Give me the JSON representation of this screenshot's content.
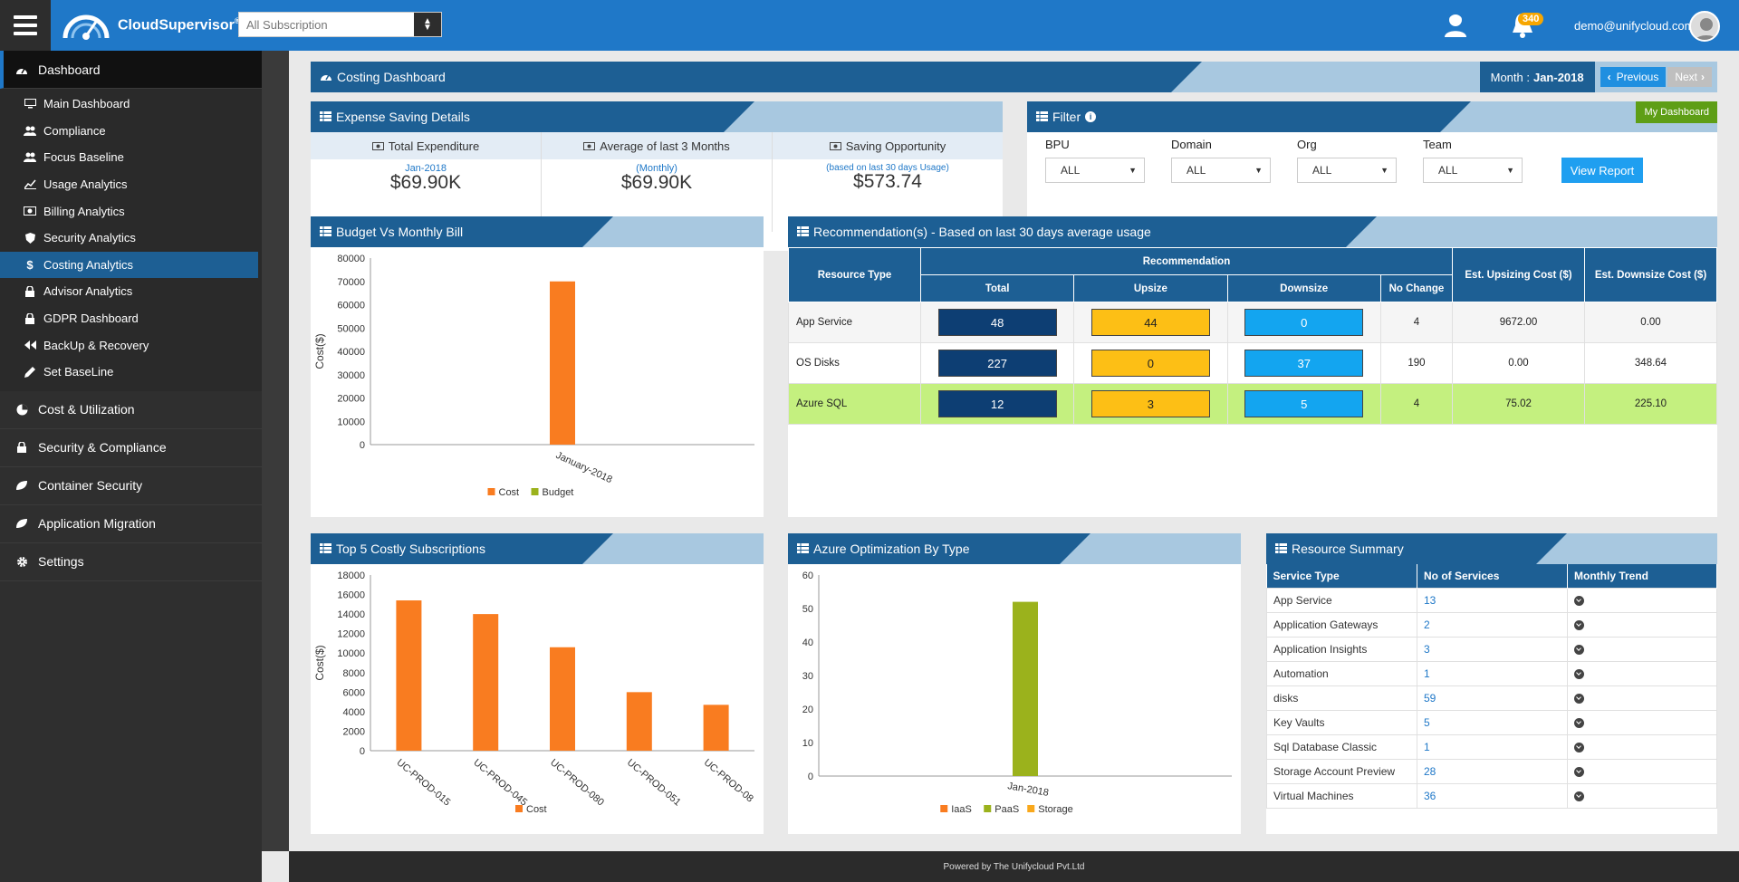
{
  "topbar": {
    "brand": "CloudSupervisor",
    "brand_mark": "®",
    "subscription": "All Subscription",
    "notifications": "340",
    "user_email": "demo@unifycloud.com"
  },
  "sidebar": {
    "dashboard": "Dashboard",
    "sub_items": [
      {
        "label": "Main Dashboard",
        "icon": "monitor-icon"
      },
      {
        "label": "Compliance",
        "icon": "users-icon"
      },
      {
        "label": "Focus Baseline",
        "icon": "users-icon"
      },
      {
        "label": "Usage Analytics",
        "icon": "line-chart-icon"
      },
      {
        "label": "Billing Analytics",
        "icon": "money-icon"
      },
      {
        "label": "Security Analytics",
        "icon": "shield-icon"
      },
      {
        "label": "Costing Analytics",
        "icon": "dollar-icon"
      },
      {
        "label": "Advisor Analytics",
        "icon": "lock-icon"
      },
      {
        "label": "GDPR Dashboard",
        "icon": "lock-icon"
      },
      {
        "label": "BackUp & Recovery",
        "icon": "backward-icon"
      },
      {
        "label": "Set BaseLine",
        "icon": "pencil-icon"
      }
    ],
    "main_items": [
      {
        "label": "Cost & Utilization",
        "icon": "pie-icon"
      },
      {
        "label": "Security & Compliance",
        "icon": "lock-icon"
      },
      {
        "label": "Container Security",
        "icon": "leaf-icon"
      },
      {
        "label": "Application Migration",
        "icon": "leaf-icon"
      },
      {
        "label": "Settings",
        "icon": "gear-icon"
      }
    ]
  },
  "costing": {
    "title": "Costing Dashboard",
    "month_prefix": "Month :",
    "month": "Jan-2018",
    "previous": "Previous",
    "next": "Next"
  },
  "expense": {
    "title": "Expense Saving Details",
    "total_title": "Total Expenditure",
    "total_sub": "Jan-2018",
    "total_value": "$69.90K",
    "avg_title": "Average of last 3 Months",
    "avg_sub": "(Monthly)",
    "avg_value": "$69.90K",
    "saving_title": "Saving Opportunity",
    "saving_sub": "(based on last 30 days Usage)",
    "saving_value": "$573.74"
  },
  "filter": {
    "title": "Filter",
    "my_dashboard": "My Dashboard",
    "fields": [
      {
        "label": "BPU",
        "value": "ALL"
      },
      {
        "label": "Domain",
        "value": "ALL"
      },
      {
        "label": "Org",
        "value": "ALL"
      },
      {
        "label": "Team",
        "value": "ALL"
      }
    ],
    "view_report": "View Report"
  },
  "budget_chart_panel": {
    "title": "Budget Vs Monthly Bill"
  },
  "recommendation": {
    "title": "Recommendation(s) - Based on last 30 days average usage",
    "headers": {
      "resource_type": "Resource Type",
      "recommendation": "Recommendation",
      "total": "Total",
      "upsize": "Upsize",
      "downsize": "Downsize",
      "no_change": "No Change",
      "upsizing_cost": "Est. Upsizing Cost ($)",
      "downsize_cost": "Est. Downsize Cost ($)"
    },
    "rows": [
      {
        "type": "App Service",
        "total": "48",
        "upsize": "44",
        "downsize": "0",
        "no_change": "4",
        "up_cost": "9672.00",
        "down_cost": "0.00"
      },
      {
        "type": "OS Disks",
        "total": "227",
        "upsize": "0",
        "downsize": "37",
        "no_change": "190",
        "up_cost": "0.00",
        "down_cost": "348.64"
      },
      {
        "type": "Azure SQL",
        "total": "12",
        "upsize": "3",
        "downsize": "5",
        "no_change": "4",
        "up_cost": "75.02",
        "down_cost": "225.10"
      }
    ]
  },
  "top5_panel": {
    "title": "Top 5 Costly Subscriptions"
  },
  "azure_panel": {
    "title": "Azure Optimization By Type"
  },
  "resource_summary": {
    "title": "Resource Summary",
    "headers": {
      "service_type": "Service Type",
      "no_of_services": "No of Services",
      "monthly_trend": "Monthly Trend"
    },
    "rows": [
      {
        "service": "App Service",
        "count": "13"
      },
      {
        "service": "Application Gateways",
        "count": "2"
      },
      {
        "service": "Application Insights",
        "count": "3"
      },
      {
        "service": "Automation",
        "count": "1"
      },
      {
        "service": "disks",
        "count": "59"
      },
      {
        "service": "Key Vaults",
        "count": "5"
      },
      {
        "service": "Sql Database Classic",
        "count": "1"
      },
      {
        "service": "Storage Account Preview",
        "count": "28"
      },
      {
        "service": "Virtual Machines",
        "count": "36"
      }
    ]
  },
  "footer": {
    "text": "Powered by The Unifycloud Pvt.Ltd"
  },
  "colors": {
    "cost": "#f97c20",
    "budget": "#9bb21c",
    "iaas": "#f97c20",
    "paas": "#9bb21c",
    "storage": "#f9a81c"
  },
  "chart_data": [
    {
      "type": "bar",
      "categories": [
        "January-2018"
      ],
      "series": [
        {
          "name": "Cost",
          "values": [
            70000
          ]
        },
        {
          "name": "Budget",
          "values": [
            0
          ]
        }
      ],
      "ylabel": "Cost($)",
      "ylim": [
        0,
        80000
      ],
      "yticks": [
        0,
        10000,
        20000,
        30000,
        40000,
        50000,
        60000,
        70000,
        80000
      ],
      "legend": "bottom"
    },
    {
      "type": "bar",
      "categories": [
        "UC-PROD-015",
        "UC-PROD-045",
        "UC-PROD-080",
        "UC-PROD-051",
        "UC-PROD-08"
      ],
      "series": [
        {
          "name": "Cost",
          "values": [
            15400,
            14000,
            10600,
            6000,
            4700
          ]
        }
      ],
      "ylabel": "Cost($)",
      "ylim": [
        0,
        18000
      ],
      "yticks": [
        0,
        2000,
        4000,
        6000,
        8000,
        10000,
        12000,
        14000,
        16000,
        18000
      ],
      "legend": "bottom"
    },
    {
      "type": "bar",
      "categories": [
        "Jan-2018"
      ],
      "series": [
        {
          "name": "IaaS",
          "values": [
            0
          ]
        },
        {
          "name": "PaaS",
          "values": [
            52
          ]
        },
        {
          "name": "Storage",
          "values": [
            0
          ]
        }
      ],
      "ylim": [
        0,
        60
      ],
      "yticks": [
        0,
        10,
        20,
        30,
        40,
        50,
        60
      ],
      "legend": "bottom"
    }
  ]
}
